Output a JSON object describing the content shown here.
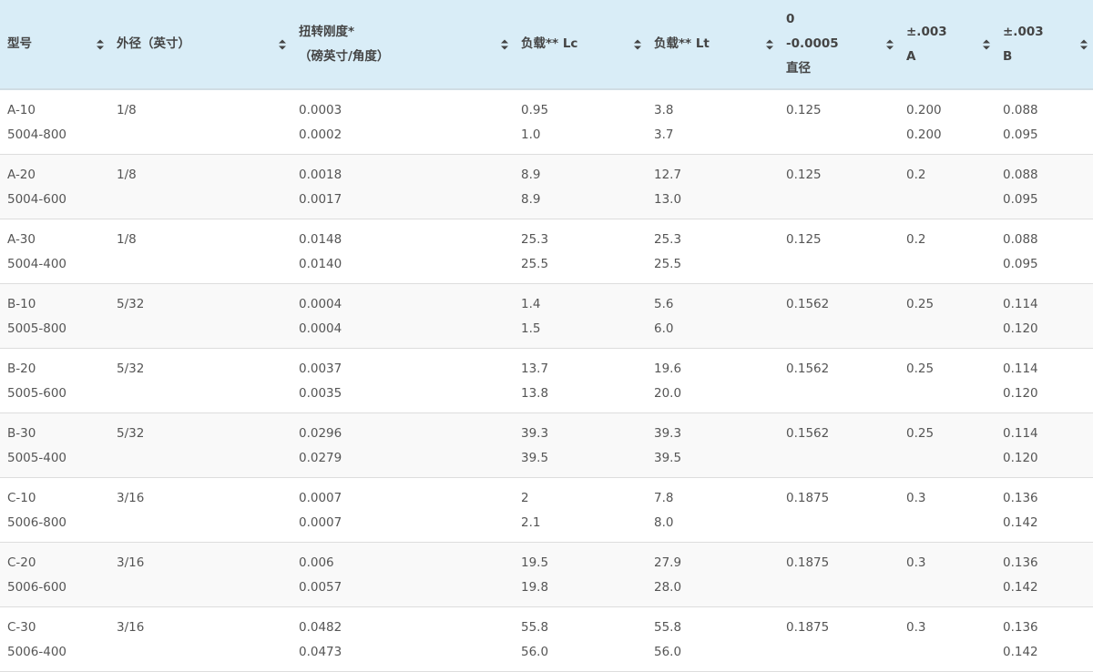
{
  "columns": [
    {
      "lines": [
        "型号"
      ]
    },
    {
      "lines": [
        "外径（英寸）"
      ]
    },
    {
      "lines": [
        "扭转刚度*",
        "（磅英寸/角度）"
      ]
    },
    {
      "lines": [
        "负载** Lc"
      ]
    },
    {
      "lines": [
        "负载** Lt"
      ]
    },
    {
      "lines": [
        "0",
        "-0.0005",
        "直径"
      ]
    },
    {
      "lines": [
        "±.003",
        "A"
      ]
    },
    {
      "lines": [
        "±.003",
        "B"
      ]
    }
  ],
  "sort_icon": "sort-updown-icon",
  "rows": [
    [
      [
        "A-10",
        "5004-800"
      ],
      [
        "1/8"
      ],
      [
        "0.0003",
        "0.0002"
      ],
      [
        "0.95",
        "1.0"
      ],
      [
        "3.8",
        "3.7"
      ],
      [
        "0.125"
      ],
      [
        "0.200",
        "0.200"
      ],
      [
        "0.088",
        "0.095"
      ]
    ],
    [
      [
        "A-20",
        "5004-600"
      ],
      [
        "1/8"
      ],
      [
        "0.0018",
        "0.0017"
      ],
      [
        "8.9",
        "8.9"
      ],
      [
        "12.7",
        "13.0"
      ],
      [
        "0.125"
      ],
      [
        "0.2"
      ],
      [
        "0.088",
        "0.095"
      ]
    ],
    [
      [
        "A-30",
        "5004-400"
      ],
      [
        "1/8"
      ],
      [
        "0.0148",
        "0.0140"
      ],
      [
        "25.3",
        "25.5"
      ],
      [
        "25.3",
        "25.5"
      ],
      [
        "0.125"
      ],
      [
        "0.2"
      ],
      [
        "0.088",
        "0.095"
      ]
    ],
    [
      [
        "B-10",
        "5005-800"
      ],
      [
        "5/32"
      ],
      [
        "0.0004",
        "0.0004"
      ],
      [
        "1.4",
        "1.5"
      ],
      [
        "5.6",
        "6.0"
      ],
      [
        "0.1562"
      ],
      [
        "0.25"
      ],
      [
        "0.114",
        "0.120"
      ]
    ],
    [
      [
        "B-20",
        "5005-600"
      ],
      [
        "5/32"
      ],
      [
        "0.0037",
        "0.0035"
      ],
      [
        "13.7",
        "13.8"
      ],
      [
        "19.6",
        "20.0"
      ],
      [
        "0.1562"
      ],
      [
        "0.25"
      ],
      [
        "0.114",
        "0.120"
      ]
    ],
    [
      [
        "B-30",
        "5005-400"
      ],
      [
        "5/32"
      ],
      [
        "0.0296",
        "0.0279"
      ],
      [
        "39.3",
        "39.5"
      ],
      [
        "39.3",
        "39.5"
      ],
      [
        "0.1562"
      ],
      [
        "0.25"
      ],
      [
        "0.114",
        "0.120"
      ]
    ],
    [
      [
        "C-10",
        "5006-800"
      ],
      [
        "3/16"
      ],
      [
        "0.0007",
        "0.0007"
      ],
      [
        "2",
        "2.1"
      ],
      [
        "7.8",
        "8.0"
      ],
      [
        "0.1875"
      ],
      [
        "0.3"
      ],
      [
        "0.136",
        "0.142"
      ]
    ],
    [
      [
        "C-20",
        "5006-600"
      ],
      [
        "3/16"
      ],
      [
        "0.006",
        "0.0057"
      ],
      [
        "19.5",
        "19.8"
      ],
      [
        "27.9",
        "28.0"
      ],
      [
        "0.1875"
      ],
      [
        "0.3"
      ],
      [
        "0.136",
        "0.142"
      ]
    ],
    [
      [
        "C-30",
        "5006-400"
      ],
      [
        "3/16"
      ],
      [
        "0.0482",
        "0.0473"
      ],
      [
        "55.8",
        "56.0"
      ],
      [
        "55.8",
        "56.0"
      ],
      [
        "0.1875"
      ],
      [
        "0.3"
      ],
      [
        "0.136",
        "0.142"
      ]
    ]
  ],
  "colors": {
    "header_bg": "#d9edf7",
    "stripe_bg": "#f9f9f9",
    "text": "#555555"
  }
}
